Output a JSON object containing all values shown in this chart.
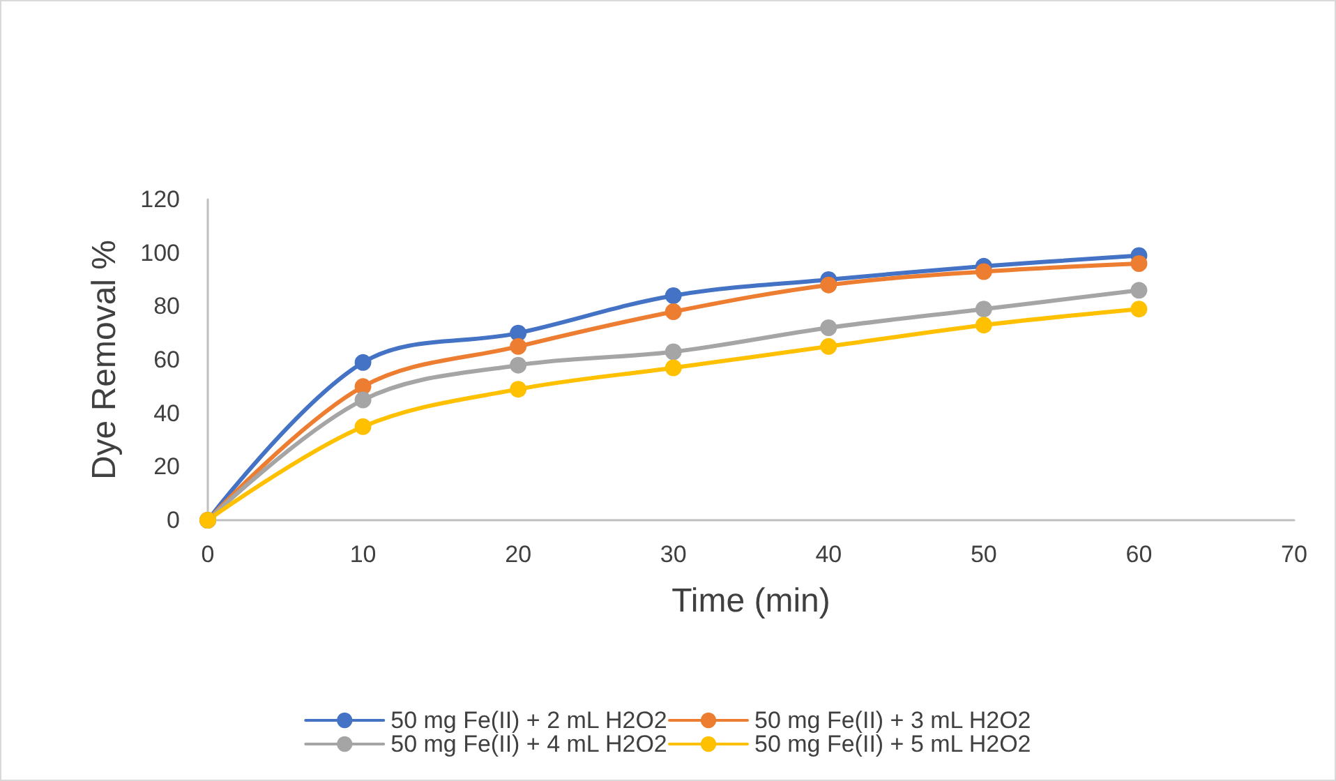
{
  "chart_data": {
    "type": "line",
    "xlabel": "Time (min)",
    "ylabel": "Dye Removal %",
    "x": [
      0,
      10,
      20,
      30,
      40,
      50,
      60
    ],
    "series": [
      {
        "name": "50 mg Fe(II) + 2 mL H2O2",
        "color": "#4472c4",
        "values": [
          0,
          59,
          70,
          84,
          90,
          95,
          99
        ]
      },
      {
        "name": "50 mg Fe(II) + 3 mL H2O2",
        "color": "#ed7d31",
        "values": [
          0,
          50,
          65,
          78,
          88,
          93,
          96
        ]
      },
      {
        "name": "50 mg Fe(II) + 4 mL H2O2",
        "color": "#a5a5a5",
        "values": [
          0,
          45,
          58,
          63,
          72,
          79,
          86
        ]
      },
      {
        "name": "50 mg Fe(II) + 5 mL H2O2",
        "color": "#ffc000",
        "values": [
          0,
          35,
          49,
          57,
          65,
          73,
          79
        ]
      }
    ],
    "xlim": [
      0,
      70
    ],
    "xticks": [
      0,
      10,
      20,
      30,
      40,
      50,
      60,
      70
    ],
    "ylim": [
      0,
      120
    ],
    "yticks": [
      0,
      20,
      40,
      60,
      80,
      100,
      120
    ],
    "grid": false,
    "legend": "bottom",
    "marker": "circle",
    "line_style": "solid"
  }
}
